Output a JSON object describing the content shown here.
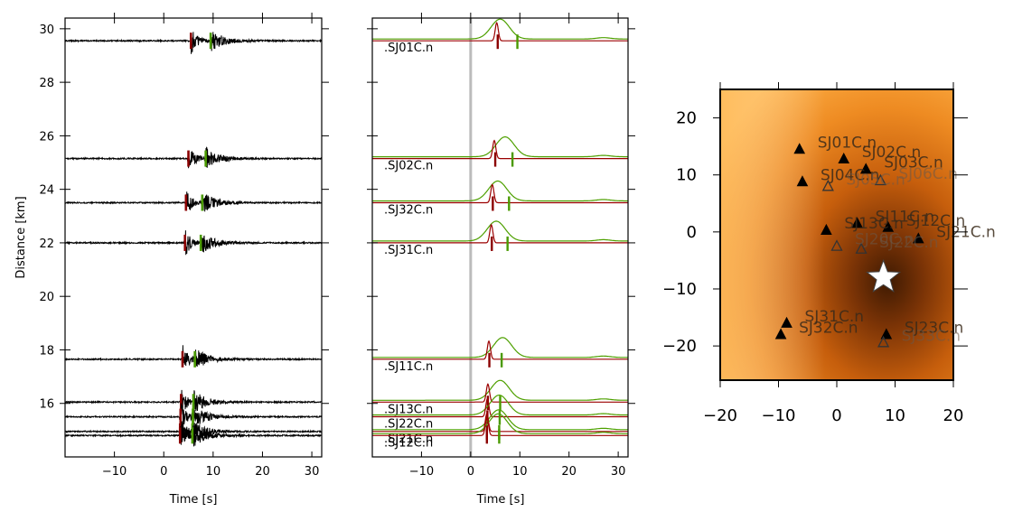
{
  "chart_data": [
    {
      "type": "line",
      "panel": "waveforms",
      "xlabel": "Time [s]",
      "ylabel": "Distance [km]",
      "xlim": [
        -20,
        32
      ],
      "ylim": [
        14,
        30.4
      ],
      "xticks": [
        -10,
        0,
        10,
        20,
        30
      ],
      "xtick_labels": [
        "−10",
        "0",
        "10",
        "20",
        "30"
      ],
      "yticks": [
        16,
        18,
        20,
        22,
        24,
        26,
        28,
        30
      ],
      "ytick_labels": [
        "16",
        "18",
        "20",
        "22",
        "24",
        "26",
        "28",
        "30"
      ],
      "traces": [
        {
          "distance": 29.55,
          "p_pick": 5.5,
          "s_pick": 9.5
        },
        {
          "distance": 25.15,
          "p_pick": 5.0,
          "s_pick": 8.5
        },
        {
          "distance": 23.5,
          "p_pick": 4.5,
          "s_pick": 7.8
        },
        {
          "distance": 22.0,
          "p_pick": 4.3,
          "s_pick": 7.5
        },
        {
          "distance": 17.65,
          "p_pick": 3.8,
          "s_pick": 6.3
        },
        {
          "distance": 16.05,
          "p_pick": 3.5,
          "s_pick": 6.0
        },
        {
          "distance": 15.5,
          "p_pick": 3.4,
          "s_pick": 5.9
        },
        {
          "distance": 14.95,
          "p_pick": 3.3,
          "s_pick": 5.8
        },
        {
          "distance": 14.8,
          "p_pick": 3.3,
          "s_pick": 5.8
        }
      ]
    },
    {
      "type": "line",
      "panel": "characteristic-functions",
      "xlabel": "Time [s]",
      "xlim": [
        -20,
        32
      ],
      "ylim": [
        14,
        30.4
      ],
      "xticks": [
        -10,
        0,
        10,
        20,
        30
      ],
      "xtick_labels": [
        "−10",
        "0",
        "10",
        "20",
        "30"
      ],
      "yticks": [
        16,
        18,
        20,
        22,
        24,
        26,
        28,
        30
      ],
      "origin_time": 0,
      "series": [
        {
          "name": ".SJ01C.n",
          "distance": 29.55,
          "p_peak": 5.3,
          "s_peak": 6.0,
          "p_pick": 5.5,
          "s_pick": 9.5
        },
        {
          "name": ".SJ02C.n",
          "distance": 25.15,
          "p_peak": 4.8,
          "s_peak": 7.0,
          "p_pick": 5.0,
          "s_pick": 8.5
        },
        {
          "name": ".SJ32C.n",
          "distance": 23.5,
          "p_peak": 4.4,
          "s_peak": 5.5,
          "p_pick": 4.5,
          "s_pick": 7.8
        },
        {
          "name": ".SJ31C.n",
          "distance": 22.0,
          "p_peak": 4.2,
          "s_peak": 5.2,
          "p_pick": 4.3,
          "s_pick": 7.5
        },
        {
          "name": ".SJ11C.n",
          "distance": 17.65,
          "p_peak": 3.7,
          "s_peak": 6.5,
          "p_pick": 3.8,
          "s_pick": 6.3
        },
        {
          "name": ".SJ13C.n",
          "distance": 16.05,
          "p_peak": 3.5,
          "s_peak": 6.0,
          "p_pick": 3.5,
          "s_pick": 6.0
        },
        {
          "name": ".SJ22C.n",
          "distance": 15.5,
          "p_peak": 3.4,
          "s_peak": 5.8,
          "p_pick": 3.4,
          "s_pick": 5.9
        },
        {
          "name": ".SJ21C.n",
          "distance": 14.95,
          "p_peak": 3.3,
          "s_peak": 5.7,
          "p_pick": 3.3,
          "s_pick": 5.8
        },
        {
          "name": ".SJ12C.n",
          "distance": 14.8,
          "p_peak": 3.3,
          "s_peak": 5.6,
          "p_pick": 3.3,
          "s_pick": 5.8
        }
      ]
    },
    {
      "type": "heatmap",
      "panel": "location-map",
      "xlim": [
        -20,
        20
      ],
      "ylim": [
        -26,
        25
      ],
      "xticks": [
        -20,
        -10,
        0,
        10,
        20
      ],
      "xtick_labels": [
        "−20",
        "−10",
        "0",
        "10",
        "20"
      ],
      "yticks": [
        -20,
        -10,
        0,
        10,
        20
      ],
      "ytick_labels": [
        "−20",
        "−10",
        "0",
        "10",
        "20"
      ],
      "epicenter": {
        "x": 8,
        "y": -8
      },
      "stations": [
        {
          "name": "SJ01C.n",
          "x": -6.4,
          "y": 14.5,
          "used": true
        },
        {
          "name": "SJ02C.n",
          "x": 1.2,
          "y": 12.8,
          "used": true
        },
        {
          "name": "SJ03C.n",
          "x": 5.0,
          "y": 11.0,
          "used": true
        },
        {
          "name": "SJ04C.n",
          "x": -5.9,
          "y": 8.8,
          "used": true
        },
        {
          "name": "SJ05C.n",
          "x": -1.5,
          "y": 8.0,
          "used": false
        },
        {
          "name": "SJ06C.n",
          "x": 7.5,
          "y": 9.0,
          "used": false
        },
        {
          "name": "SJ11C.n",
          "x": 3.5,
          "y": 1.5,
          "used": true
        },
        {
          "name": "SJ12C.n",
          "x": 8.8,
          "y": 0.8,
          "used": true
        },
        {
          "name": "SJ13C.n",
          "x": -1.8,
          "y": 0.3,
          "used": true
        },
        {
          "name": "SJ20C.n",
          "x": 0.0,
          "y": -2.5,
          "used": false
        },
        {
          "name": "SJ21C.n",
          "x": 14.0,
          "y": -1.2,
          "used": true
        },
        {
          "name": "SJ22C.n",
          "x": 4.2,
          "y": -3.0,
          "used": false
        },
        {
          "name": "SJ31C.n",
          "x": -8.6,
          "y": -16.0,
          "used": true
        },
        {
          "name": "SJ32C.n",
          "x": -9.6,
          "y": -18.0,
          "used": true
        },
        {
          "name": "SJ23C.n",
          "x": 8.5,
          "y": -18.0,
          "used": true
        },
        {
          "name": "SJ33C.n",
          "x": 8.0,
          "y": -19.4,
          "used": false
        }
      ]
    }
  ],
  "colors": {
    "p_pick": "#8b0000",
    "s_pick": "#4a9a00",
    "p_cf": "#9b0000",
    "s_cf": "#4ea000",
    "waveform": "#000000",
    "origin_line": "#bbbbbb",
    "map_light": "#ffb347",
    "map_dark": "#5a2200"
  }
}
